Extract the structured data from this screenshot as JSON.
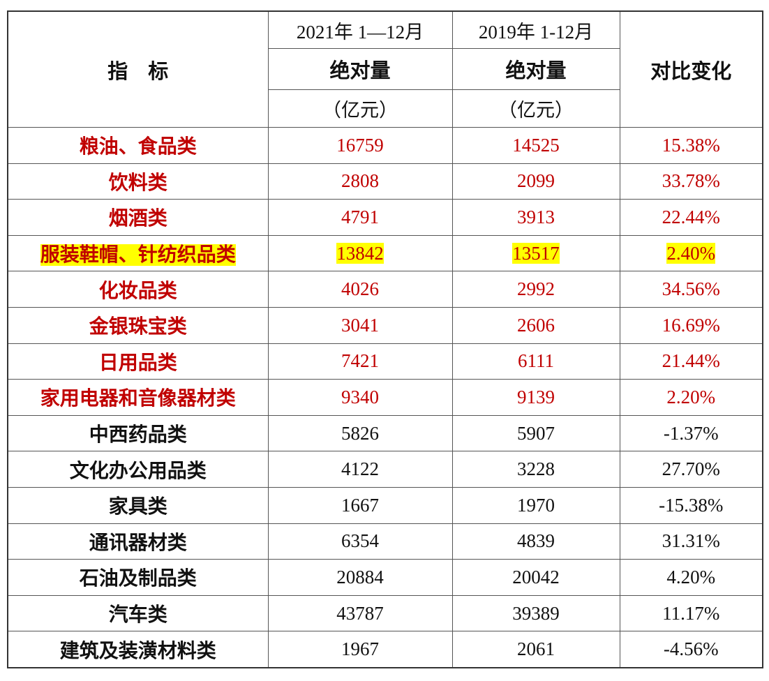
{
  "header": {
    "indicator": "指　标",
    "col2021": "2021年 1—12月",
    "col2019": "2019年 1-12月",
    "measure": "绝对量",
    "unit": "（亿元）",
    "change": "对比变化"
  },
  "table": {
    "rows": [
      {
        "name": "粮油、食品类",
        "v2021": "16759",
        "v2019": "14525",
        "change": "15.38%",
        "color": "#c00000",
        "highlight": false
      },
      {
        "name": "饮料类",
        "v2021": "2808",
        "v2019": "2099",
        "change": "33.78%",
        "color": "#c00000",
        "highlight": false
      },
      {
        "name": "烟酒类",
        "v2021": "4791",
        "v2019": "3913",
        "change": "22.44%",
        "color": "#c00000",
        "highlight": false
      },
      {
        "name": "服装鞋帽、针纺织品类",
        "v2021": "13842",
        "v2019": "13517",
        "change": "2.40%",
        "color": "#c00000",
        "highlight": true
      },
      {
        "name": "化妆品类",
        "v2021": "4026",
        "v2019": "2992",
        "change": "34.56%",
        "color": "#c00000",
        "highlight": false
      },
      {
        "name": "金银珠宝类",
        "v2021": "3041",
        "v2019": "2606",
        "change": "16.69%",
        "color": "#c00000",
        "highlight": false
      },
      {
        "name": "日用品类",
        "v2021": "7421",
        "v2019": "6111",
        "change": "21.44%",
        "color": "#c00000",
        "highlight": false
      },
      {
        "name": "家用电器和音像器材类",
        "v2021": "9340",
        "v2019": "9139",
        "change": "2.20%",
        "color": "#c00000",
        "highlight": false
      },
      {
        "name": "中西药品类",
        "v2021": "5826",
        "v2019": "5907",
        "change": "-1.37%",
        "color": "#111111",
        "highlight": false
      },
      {
        "name": "文化办公用品类",
        "v2021": "4122",
        "v2019": "3228",
        "change": "27.70%",
        "color": "#111111",
        "highlight": false
      },
      {
        "name": "家具类",
        "v2021": "1667",
        "v2019": "1970",
        "change": "-15.38%",
        "color": "#111111",
        "highlight": false
      },
      {
        "name": "通讯器材类",
        "v2021": "6354",
        "v2019": "4839",
        "change": "31.31%",
        "color": "#111111",
        "highlight": false
      },
      {
        "name": "石油及制品类",
        "v2021": "20884",
        "v2019": "20042",
        "change": "4.20%",
        "color": "#111111",
        "highlight": false
      },
      {
        "name": "汽车类",
        "v2021": "43787",
        "v2019": "39389",
        "change": "11.17%",
        "color": "#111111",
        "highlight": false
      },
      {
        "name": "建筑及装潢材料类",
        "v2021": "1967",
        "v2019": "2061",
        "change": "-4.56%",
        "color": "#111111",
        "highlight": false
      }
    ]
  }
}
